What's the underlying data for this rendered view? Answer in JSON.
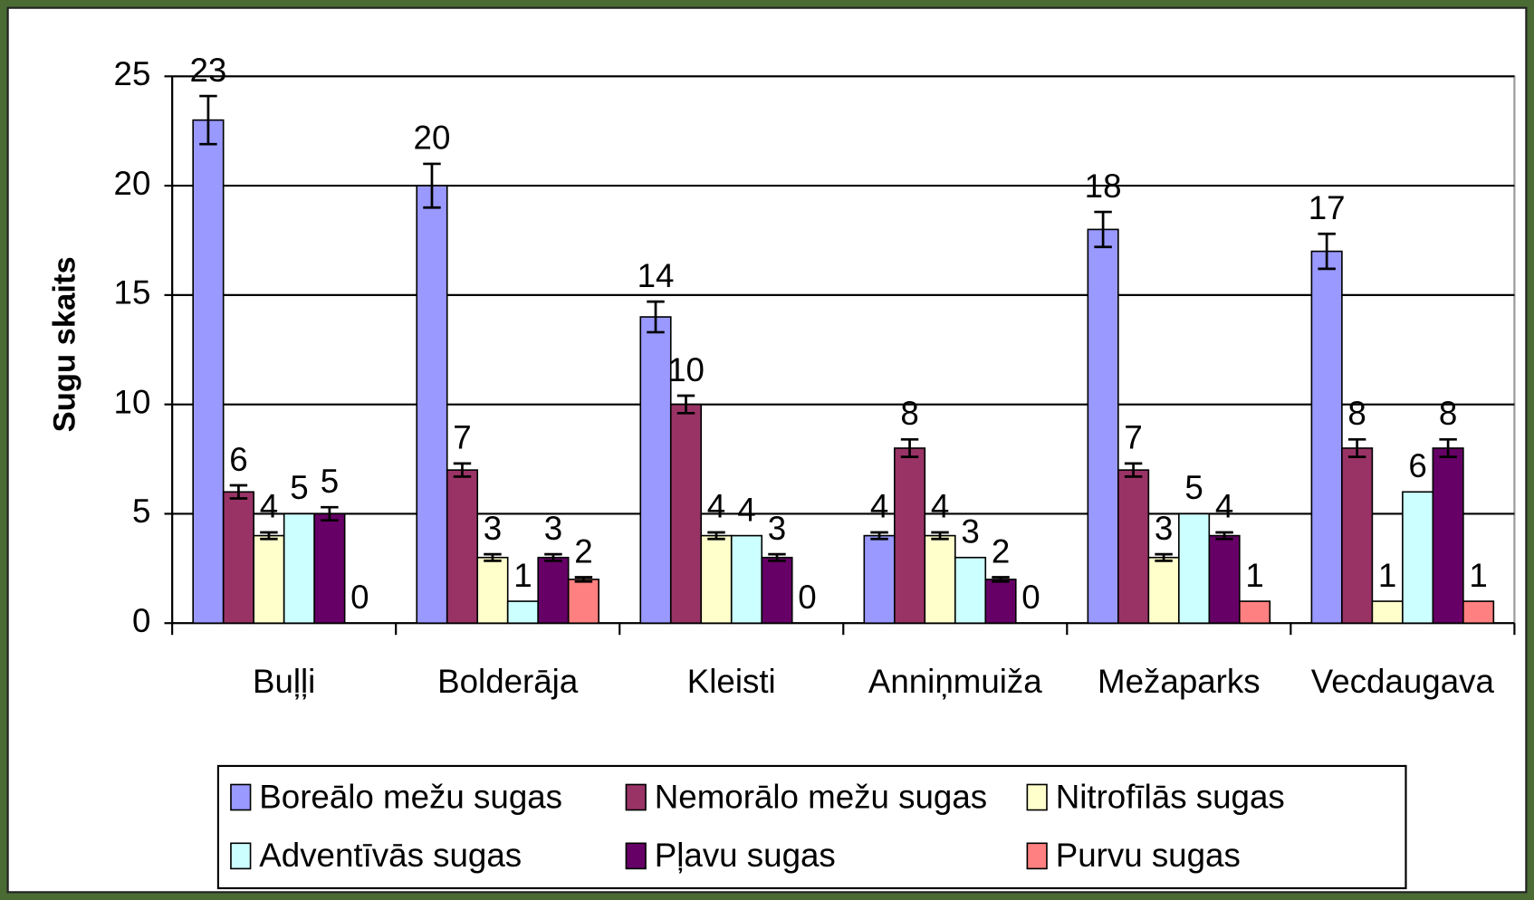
{
  "chart_data": {
    "type": "bar",
    "y_label": "Sugu skaits",
    "categories": [
      "Buļļi",
      "Bolderāja",
      "Kleisti",
      "Anniņmuiža",
      "Mežaparks",
      "Vecdaugava"
    ],
    "ylim": [
      0,
      25
    ],
    "yticks": [
      0,
      5,
      10,
      15,
      20,
      25
    ],
    "grid": true,
    "legend": "bottom",
    "series": [
      {
        "name": "Boreālo mežu sugas",
        "color": "#9999ff",
        "values": [
          23,
          20,
          14,
          4,
          18,
          17
        ],
        "errors": [
          1.1,
          1,
          0.7,
          0.15,
          0.8,
          0.8
        ]
      },
      {
        "name": "Nemorālo mežu sugas",
        "color": "#993366",
        "values": [
          6,
          7,
          10,
          8,
          7,
          8
        ],
        "errors": [
          0.3,
          0.3,
          0.4,
          0.4,
          0.3,
          0.4
        ]
      },
      {
        "name": "Nitrofīlās sugas",
        "color": "#ffffcc",
        "values": [
          4,
          3,
          4,
          4,
          3,
          1
        ],
        "errors": [
          0.15,
          0.15,
          0.15,
          0.15,
          0.15,
          null
        ]
      },
      {
        "name": "Adventīvās sugas",
        "color": "#ccffff",
        "values": [
          5,
          1,
          4,
          3,
          5,
          6
        ],
        "errors": [
          null,
          null,
          null,
          null,
          null,
          null
        ]
      },
      {
        "name": "Pļavu sugas",
        "color": "#660066",
        "values": [
          5,
          3,
          3,
          2,
          4,
          8
        ],
        "errors": [
          0.3,
          0.15,
          0.15,
          0.1,
          0.15,
          0.4
        ]
      },
      {
        "name": "Purvu sugas",
        "color": "#ff8080",
        "values": [
          0,
          2,
          0,
          0,
          1,
          1
        ],
        "errors": [
          null,
          0.1,
          null,
          null,
          null,
          null
        ]
      }
    ]
  }
}
